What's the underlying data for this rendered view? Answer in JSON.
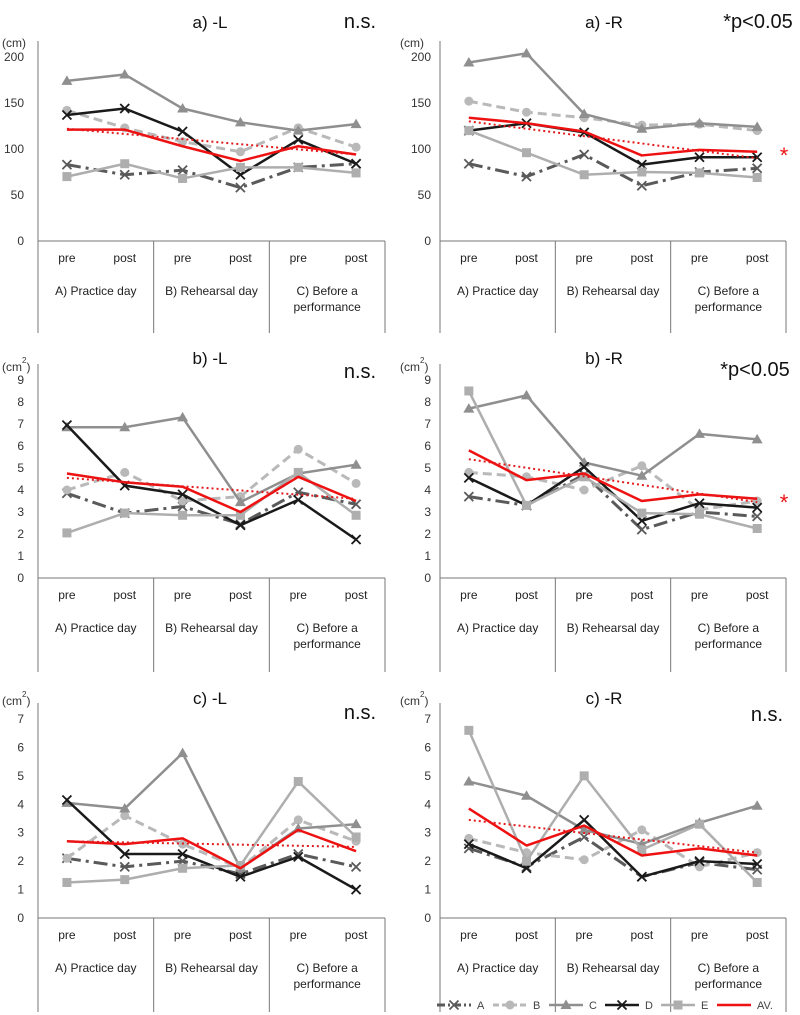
{
  "colors": {
    "A": "#5a5a5a",
    "B": "#b9b9b9",
    "C": "#8f8f8f",
    "D": "#1a1a1a",
    "E": "#aeaeae",
    "AV": "#ee1111",
    "trend": "#e31a1c",
    "axis": "#777777"
  },
  "chart_data": [
    {
      "type": "line",
      "title": "a) -L",
      "sig": "n.s.",
      "unit": "(cm)",
      "ylim": [
        0,
        200
      ],
      "yticks": [
        0,
        50,
        100,
        150,
        200
      ],
      "x": [
        "pre",
        "post",
        "pre",
        "post",
        "pre",
        "post"
      ],
      "groups": [
        {
          "label": "A) Practice day"
        },
        {
          "label": "B) Rehearsal day"
        },
        {
          "label": "C) Before a",
          "label2": "performance"
        }
      ],
      "star": "",
      "series": [
        {
          "name": "A",
          "values": [
            83,
            72,
            77,
            58,
            80,
            84
          ]
        },
        {
          "name": "B",
          "values": [
            142,
            123,
            108,
            97,
            123,
            102
          ]
        },
        {
          "name": "C",
          "values": [
            174,
            181,
            144,
            129,
            120,
            127
          ]
        },
        {
          "name": "D",
          "values": [
            137,
            144,
            119,
            72,
            110,
            84
          ]
        },
        {
          "name": "E",
          "values": [
            70,
            84,
            68,
            80,
            80,
            74
          ]
        },
        {
          "name": "AV.",
          "values": [
            121,
            121,
            103,
            87,
            103,
            94
          ]
        }
      ],
      "trend": [
        122,
        94
      ]
    },
    {
      "type": "line",
      "title": "a) -R",
      "sig": "*p<0.05",
      "unit": "(cm)",
      "ylim": [
        0,
        200
      ],
      "yticks": [
        0,
        50,
        100,
        150,
        200
      ],
      "x": [
        "pre",
        "post",
        "pre",
        "post",
        "pre",
        "post"
      ],
      "groups": [
        {
          "label": "A) Practice day"
        },
        {
          "label": "B) Rehearsal day"
        },
        {
          "label": "C) Before a",
          "label2": "performance"
        }
      ],
      "star": "*",
      "series": [
        {
          "name": "A",
          "values": [
            84,
            70,
            94,
            60,
            75,
            79
          ]
        },
        {
          "name": "B",
          "values": [
            152,
            140,
            134,
            126,
            127,
            120
          ]
        },
        {
          "name": "C",
          "values": [
            194,
            204,
            138,
            122,
            128,
            124
          ]
        },
        {
          "name": "D",
          "values": [
            120,
            128,
            118,
            83,
            91,
            91
          ]
        },
        {
          "name": "E",
          "values": [
            120,
            96,
            72,
            75,
            74,
            69
          ]
        },
        {
          "name": "AV.",
          "values": [
            134,
            128,
            119,
            93,
            99,
            97
          ]
        }
      ],
      "trend": [
        130,
        90
      ]
    },
    {
      "type": "line",
      "title": "b) -L",
      "sig": "n.s.",
      "unit": "(cm",
      "unit_sup": "2",
      "unit_close": ")",
      "ylim": [
        0,
        9
      ],
      "yticks": [
        0,
        1,
        2,
        3,
        4,
        5,
        6,
        7,
        8,
        9
      ],
      "x": [
        "pre",
        "post",
        "pre",
        "post",
        "pre",
        "post"
      ],
      "groups": [
        {
          "label": "A) Practice day"
        },
        {
          "label": "B) Rehearsal day"
        },
        {
          "label": "C) Before a",
          "label2": "performance"
        }
      ],
      "star": "",
      "series": [
        {
          "name": "A",
          "values": [
            3.85,
            2.95,
            3.25,
            2.45,
            3.9,
            3.35
          ]
        },
        {
          "name": "B",
          "values": [
            4.0,
            4.8,
            3.5,
            3.7,
            5.85,
            4.3
          ]
        },
        {
          "name": "C",
          "values": [
            6.85,
            6.85,
            7.3,
            3.45,
            4.75,
            5.15
          ]
        },
        {
          "name": "D",
          "values": [
            6.95,
            4.2,
            3.8,
            2.4,
            3.55,
            1.75
          ]
        },
        {
          "name": "E",
          "values": [
            2.05,
            2.95,
            2.85,
            2.85,
            4.8,
            2.85
          ]
        },
        {
          "name": "AV.",
          "values": [
            4.75,
            4.35,
            4.15,
            3.0,
            4.6,
            3.5
          ]
        }
      ],
      "trend": [
        4.55,
        3.6
      ]
    },
    {
      "type": "line",
      "title": "b) -R",
      "sig": "*p<0.05",
      "unit": "(cm",
      "unit_sup": "2",
      "unit_close": ")",
      "ylim": [
        0,
        9
      ],
      "yticks": [
        0,
        1,
        2,
        3,
        4,
        5,
        6,
        7,
        8,
        9
      ],
      "x": [
        "pre",
        "post",
        "pre",
        "post",
        "pre",
        "post"
      ],
      "groups": [
        {
          "label": "A) Practice day"
        },
        {
          "label": "B) Rehearsal day"
        },
        {
          "label": "C) Before a",
          "label2": "performance"
        }
      ],
      "star": "*",
      "series": [
        {
          "name": "A",
          "values": [
            3.7,
            3.3,
            4.7,
            2.2,
            3.0,
            2.8
          ]
        },
        {
          "name": "B",
          "values": [
            4.8,
            4.6,
            4.0,
            5.1,
            3.1,
            3.5
          ]
        },
        {
          "name": "C",
          "values": [
            7.7,
            8.3,
            5.25,
            4.65,
            6.55,
            6.3
          ]
        },
        {
          "name": "D",
          "values": [
            4.55,
            3.3,
            5.05,
            2.6,
            3.4,
            3.2
          ]
        },
        {
          "name": "E",
          "values": [
            8.5,
            3.3,
            4.6,
            2.95,
            2.9,
            2.25
          ]
        },
        {
          "name": "AV.",
          "values": [
            5.8,
            4.45,
            4.75,
            3.5,
            3.8,
            3.6
          ]
        }
      ],
      "trend": [
        5.4,
        3.45
      ]
    },
    {
      "type": "line",
      "title": "c) -L",
      "sig": "n.s.",
      "unit": "(cm",
      "unit_sup": "2",
      "unit_close": ")",
      "ylim": [
        0,
        7
      ],
      "yticks": [
        0,
        1,
        2,
        3,
        4,
        5,
        6,
        7
      ],
      "x": [
        "pre",
        "post",
        "pre",
        "post",
        "pre",
        "post"
      ],
      "groups": [
        {
          "label": "A) Practice day"
        },
        {
          "label": "B) Rehearsal day"
        },
        {
          "label": "C) Before a",
          "label2": "performance"
        }
      ],
      "star": "",
      "series": [
        {
          "name": "A",
          "values": [
            2.1,
            1.8,
            2.0,
            1.55,
            2.25,
            1.8
          ]
        },
        {
          "name": "B",
          "values": [
            2.1,
            3.6,
            2.6,
            1.75,
            3.45,
            2.7
          ]
        },
        {
          "name": "C",
          "values": [
            4.05,
            3.85,
            5.8,
            1.75,
            3.15,
            3.3
          ]
        },
        {
          "name": "D",
          "values": [
            4.15,
            2.25,
            2.25,
            1.45,
            2.15,
            1.0
          ]
        },
        {
          "name": "E",
          "values": [
            1.25,
            1.35,
            1.75,
            1.85,
            4.8,
            2.85
          ]
        },
        {
          "name": "AV.",
          "values": [
            2.7,
            2.6,
            2.8,
            1.75,
            3.1,
            2.35
          ]
        }
      ],
      "trend": [
        2.7,
        2.5
      ]
    },
    {
      "type": "line",
      "title": "c) -R",
      "sig": "n.s.",
      "unit": "(cm",
      "unit_sup": "2",
      "unit_close": ")",
      "ylim": [
        0,
        7
      ],
      "yticks": [
        0,
        1,
        2,
        3,
        4,
        5,
        6,
        7
      ],
      "x": [
        "pre",
        "post",
        "pre",
        "post",
        "pre",
        "post"
      ],
      "groups": [
        {
          "label": "A) Practice day"
        },
        {
          "label": "B) Rehearsal day"
        },
        {
          "label": "C) Before a",
          "label2": "performance"
        }
      ],
      "star": "",
      "series": [
        {
          "name": "A",
          "values": [
            2.45,
            1.8,
            2.85,
            1.45,
            1.95,
            1.7
          ]
        },
        {
          "name": "B",
          "values": [
            2.8,
            2.3,
            2.05,
            3.1,
            1.8,
            2.3
          ]
        },
        {
          "name": "C",
          "values": [
            4.8,
            4.3,
            3.1,
            2.6,
            3.35,
            3.95
          ]
        },
        {
          "name": "D",
          "values": [
            2.6,
            1.75,
            3.45,
            1.45,
            2.0,
            1.9
          ]
        },
        {
          "name": "E",
          "values": [
            6.6,
            2.0,
            5.0,
            2.4,
            3.3,
            1.25
          ]
        },
        {
          "name": "AV.",
          "values": [
            3.85,
            2.55,
            3.25,
            2.2,
            2.45,
            2.2
          ]
        }
      ],
      "trend": [
        3.45,
        2.3
      ]
    }
  ],
  "legend": [
    {
      "name": "A",
      "label": "A"
    },
    {
      "name": "B",
      "label": "B"
    },
    {
      "name": "C",
      "label": "C"
    },
    {
      "name": "D",
      "label": "D"
    },
    {
      "name": "E",
      "label": "E"
    },
    {
      "name": "AV.",
      "label": "AV."
    }
  ]
}
